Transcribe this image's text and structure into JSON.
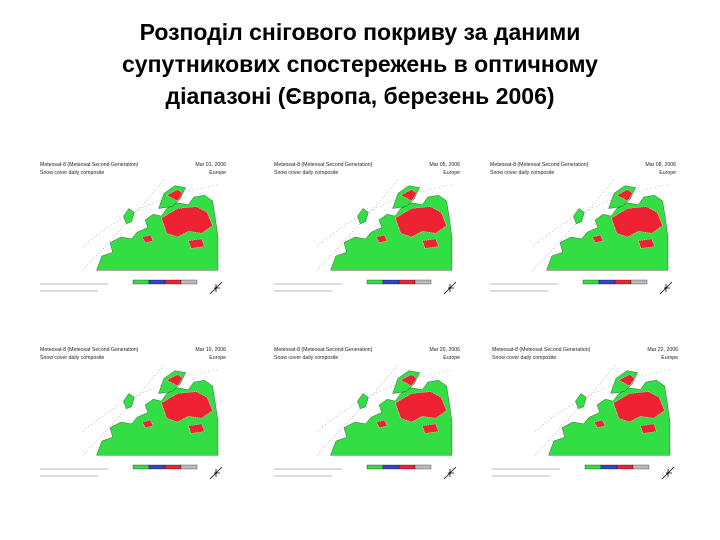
{
  "title_lines": [
    "Розподіл снігового покриву за даними",
    "супутникових спостережень в оптичному",
    "діапазоні (Європа, березень 2006)"
  ],
  "panels": [
    {
      "satellite": "Meteosat-8 (Meteosat Second Generation)",
      "date": "Mar 01, 2006",
      "product": "Snow cover daily composite",
      "region": "Europe"
    },
    {
      "satellite": "Meteosat-8 (Meteosat Second Generation)",
      "date": "Mar 05, 2006",
      "product": "Snow cover daily composite",
      "region": "Europe"
    },
    {
      "satellite": "Meteosat-8 (Meteosat Second Generation)",
      "date": "Mar 08, 2006",
      "product": "Snow cover daily composite",
      "region": "Europe"
    },
    {
      "satellite": "Meteosat-8 (Meteosat Second Generation)",
      "date": "Mar 10, 2006",
      "product": "Snow cover daily composite",
      "region": "Europe"
    },
    {
      "satellite": "Meteosat-8 (Meteosat Second Generation)",
      "date": "Mar 20, 2006",
      "product": "Snow cover daily composite",
      "region": "Europe"
    },
    {
      "satellite": "Meteosat-8 (Meteosat Second Generation)",
      "date": "Mar 22, 2006",
      "product": "Snow cover daily composite",
      "region": "Europe"
    }
  ]
}
